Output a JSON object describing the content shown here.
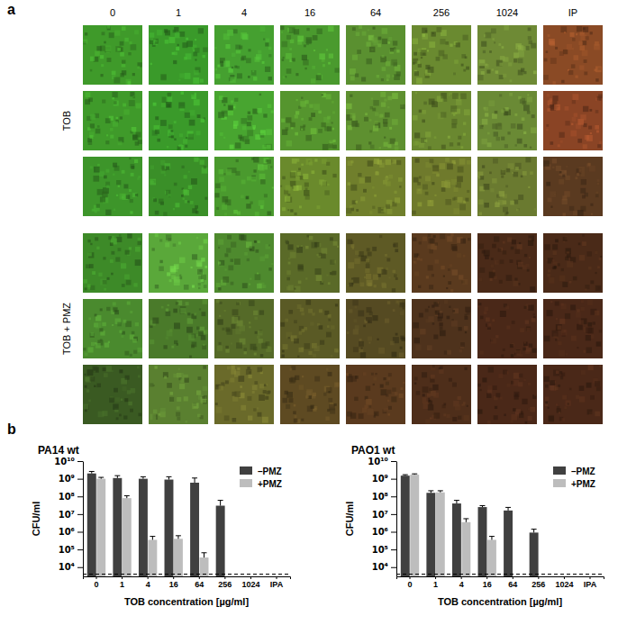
{
  "panel_a": {
    "label": "a",
    "columns": [
      "0",
      "1",
      "4",
      "16",
      "64",
      "256",
      "1024",
      "IP"
    ],
    "row_groups": [
      {
        "label": "TOB",
        "tiles": [
          [
            "#3f9a2a",
            "#3a9a2a",
            "#45a030",
            "#4a9a2e",
            "#5a9030",
            "#6a8a30",
            "#6e8a35",
            "#8a4a25"
          ],
          [
            "#3f9a2a",
            "#3a9a2a",
            "#48a530",
            "#55952e",
            "#5e9030",
            "#6a8830",
            "#6a8a35",
            "#8a4425"
          ],
          [
            "#3d952a",
            "#3a8f28",
            "#4a9a2e",
            "#6a8a2c",
            "#707f2c",
            "#6f7a2c",
            "#6a7a30",
            "#5a3a20"
          ]
        ]
      },
      {
        "label": "TOB + PMZ",
        "tiles": [
          [
            "#3d8a28",
            "#5aa83a",
            "#4e8a2e",
            "#5a6a28",
            "#5e5a25",
            "#5a3a1e",
            "#4a2a18",
            "#4a2a18"
          ],
          [
            "#4a8a2e",
            "#4a7a2a",
            "#556a28",
            "#5a5a25",
            "#554a22",
            "#4e321c",
            "#4a2818",
            "#4a2818"
          ],
          [
            "#3a5a22",
            "#5a8030",
            "#6a6a2a",
            "#5e4a22",
            "#5a3a1e",
            "#4e2e1a",
            "#4a2818",
            "#4a2818"
          ]
        ]
      }
    ]
  },
  "panel_b": {
    "label": "b"
  },
  "chart_data": [
    {
      "type": "bar",
      "title": "PA14 wt",
      "x_label": "TOB concentration [µg/ml]",
      "y_label": "CFU/ml",
      "categories": [
        "0",
        "1",
        "4",
        "16",
        "64",
        "256",
        "1024",
        "IPA"
      ],
      "log": "y",
      "legend": "top-right",
      "ylim": [
        3000,
        10000000000
      ],
      "yticks": [
        {
          "value": 10000,
          "label": "10⁴"
        },
        {
          "value": 100000,
          "label": "10⁵"
        },
        {
          "value": 1000000,
          "label": "10⁶"
        },
        {
          "value": 10000000,
          "label": "10⁷"
        },
        {
          "value": 100000000,
          "label": "10⁸"
        },
        {
          "value": 1000000000,
          "label": "10⁹"
        },
        {
          "value": 10000000000,
          "label": "10¹⁰"
        }
      ],
      "detection_limit": 4000,
      "series": [
        {
          "name": "–PMZ",
          "color": "#404040",
          "values": [
            2000000000,
            1100000000,
            1000000000,
            900000000,
            600000000,
            30000000,
            null,
            null
          ],
          "errors": [
            600000000,
            400000000,
            300000000,
            400000000,
            500000000,
            30000000,
            null,
            null
          ]
        },
        {
          "name": "+PMZ",
          "color": "#bdbdbd",
          "values": [
            1000000000,
            80000000,
            350000,
            400000,
            35000,
            null,
            null,
            null
          ],
          "errors": [
            200000000,
            30000000,
            200000,
            200000,
            30000,
            null,
            null,
            null
          ]
        }
      ]
    },
    {
      "type": "bar",
      "title": "PAO1 wt",
      "x_label": "TOB concentration [µg/ml]",
      "y_label": "CFU/ml",
      "categories": [
        "0",
        "1",
        "4",
        "16",
        "64",
        "256",
        "1024",
        "IPA"
      ],
      "log": "y",
      "legend": "top-right",
      "ylim": [
        3000,
        10000000000
      ],
      "yticks": [
        {
          "value": 10000,
          "label": "10⁴"
        },
        {
          "value": 100000,
          "label": "10⁵"
        },
        {
          "value": 1000000,
          "label": "10⁶"
        },
        {
          "value": 10000000,
          "label": "10⁷"
        },
        {
          "value": 100000000,
          "label": "10⁸"
        },
        {
          "value": 1000000000,
          "label": "10⁹"
        },
        {
          "value": 10000000000,
          "label": "10¹⁰"
        }
      ],
      "detection_limit": 4000,
      "series": [
        {
          "name": "–PMZ",
          "color": "#404040",
          "values": [
            1500000000,
            160000000,
            40000000,
            25000000,
            16000000,
            900000,
            null,
            null
          ],
          "errors": [
            200000000,
            50000000,
            20000000,
            5000000,
            8000000,
            500000,
            null,
            null
          ]
        },
        {
          "name": "+PMZ",
          "color": "#bdbdbd",
          "values": [
            1700000000,
            170000000,
            3500000,
            350000,
            null,
            null,
            null,
            null
          ],
          "errors": [
            200000000,
            40000000,
            2000000,
            200000,
            null,
            null,
            null,
            null
          ]
        }
      ]
    }
  ]
}
